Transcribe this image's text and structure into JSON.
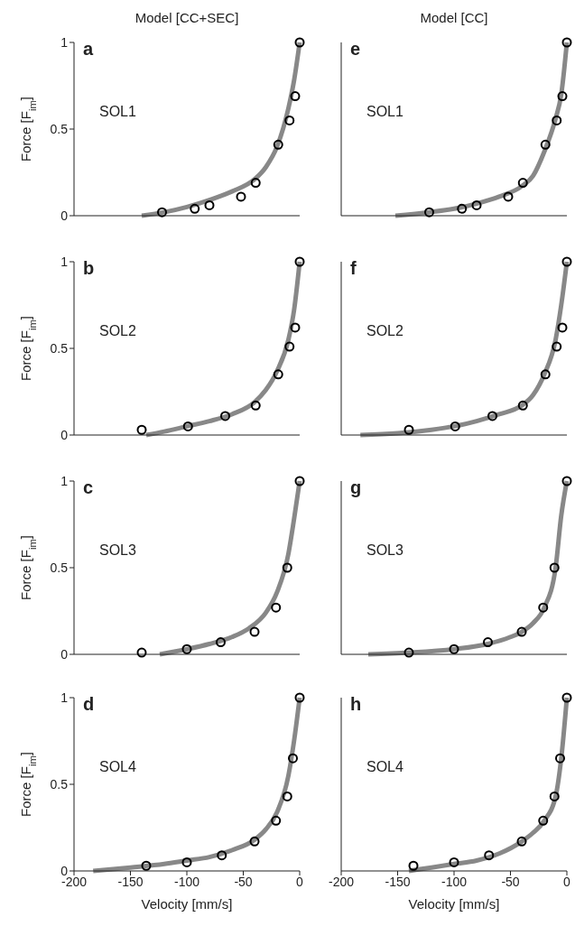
{
  "chart_data": [
    {
      "type": "line",
      "title": "Model [CC+SEC]",
      "ylabel": "Force [F$_{im}$]",
      "annotations": [
        "a",
        "SOL1"
      ],
      "xlim": [
        -200,
        0
      ],
      "xticks": [
        -200,
        -150,
        -100,
        -50,
        0
      ],
      "ylim": [
        0,
        1
      ],
      "yticks": [
        0,
        0.5,
        1
      ],
      "tick_labels": "y",
      "series": [
        {
          "color": "#888888",
          "x": [
            -140,
            -120,
            -100,
            -80,
            -60,
            -40,
            -30,
            -20,
            -10,
            -5,
            0
          ],
          "values": [
            0,
            0.02,
            0.05,
            0.09,
            0.14,
            0.21,
            0.28,
            0.4,
            0.62,
            0.78,
            1
          ]
        },
        {
          "type": "scatter",
          "marker": "circle",
          "color": "#000000",
          "x": [
            -122,
            -93,
            -80,
            -52,
            -39,
            -19,
            -9,
            -4,
            0
          ],
          "values": [
            0.02,
            0.04,
            0.06,
            0.11,
            0.19,
            0.41,
            0.55,
            0.69,
            1
          ]
        }
      ]
    },
    {
      "type": "line",
      "title": "Model [CC]",
      "annotations": [
        "e",
        "SOL1"
      ],
      "xlim": [
        -200,
        0
      ],
      "xticks": [
        -200,
        -150,
        -100,
        -50,
        0
      ],
      "ylim": [
        0,
        1
      ],
      "yticks": [
        0,
        0.5,
        1
      ],
      "tick_labels": false,
      "series": [
        {
          "color": "#888888",
          "x": [
            -152,
            -122,
            -100,
            -80,
            -60,
            -40,
            -30,
            -20,
            -10,
            -5,
            0
          ],
          "values": [
            0,
            0.02,
            0.04,
            0.07,
            0.11,
            0.17,
            0.23,
            0.37,
            0.56,
            0.7,
            1
          ]
        },
        {
          "type": "scatter",
          "marker": "circle",
          "color": "#000000",
          "x": [
            -122,
            -93,
            -80,
            -52,
            -39,
            -19,
            -9,
            -4,
            0
          ],
          "values": [
            0.02,
            0.04,
            0.06,
            0.11,
            0.19,
            0.41,
            0.55,
            0.69,
            1
          ]
        }
      ]
    },
    {
      "type": "line",
      "ylabel": "Force [F$_{im}$]",
      "annotations": [
        "b",
        "SOL2"
      ],
      "xlim": [
        -200,
        0
      ],
      "xticks": [
        -200,
        -150,
        -100,
        -50,
        0
      ],
      "ylim": [
        0,
        1
      ],
      "yticks": [
        0,
        0.5,
        1
      ],
      "tick_labels": "y",
      "series": [
        {
          "color": "#888888",
          "x": [
            -136,
            -120,
            -100,
            -80,
            -60,
            -40,
            -30,
            -20,
            -10,
            -5,
            0
          ],
          "values": [
            0,
            0.02,
            0.05,
            0.08,
            0.12,
            0.19,
            0.26,
            0.37,
            0.55,
            0.72,
            1
          ]
        },
        {
          "type": "scatter",
          "marker": "circle",
          "color": "#000000",
          "x": [
            -140,
            -99,
            -66,
            -39,
            -19,
            -9,
            -4,
            0
          ],
          "values": [
            0.03,
            0.05,
            0.11,
            0.17,
            0.35,
            0.51,
            0.62,
            1
          ]
        }
      ]
    },
    {
      "type": "line",
      "annotations": [
        "f",
        "SOL2"
      ],
      "xlim": [
        -200,
        0
      ],
      "xticks": [
        -200,
        -150,
        -100,
        -50,
        0
      ],
      "ylim": [
        0,
        1
      ],
      "yticks": [
        0,
        0.5,
        1
      ],
      "tick_labels": false,
      "series": [
        {
          "color": "#888888",
          "x": [
            -183,
            -150,
            -120,
            -100,
            -80,
            -60,
            -40,
            -30,
            -20,
            -10,
            -5,
            0
          ],
          "values": [
            0,
            0.01,
            0.03,
            0.05,
            0.08,
            0.12,
            0.17,
            0.23,
            0.35,
            0.55,
            0.75,
            1
          ]
        },
        {
          "type": "scatter",
          "marker": "circle",
          "color": "#000000",
          "x": [
            -140,
            -99,
            -66,
            -39,
            -19,
            -9,
            -4,
            0
          ],
          "values": [
            0.03,
            0.05,
            0.11,
            0.17,
            0.35,
            0.51,
            0.62,
            1
          ]
        }
      ]
    },
    {
      "type": "line",
      "ylabel": "Force [F$_{im}$]",
      "annotations": [
        "c",
        "SOL3"
      ],
      "xlim": [
        -200,
        0
      ],
      "xticks": [
        -200,
        -150,
        -100,
        -50,
        0
      ],
      "ylim": [
        0,
        1
      ],
      "yticks": [
        0,
        0.5,
        1
      ],
      "tick_labels": "y",
      "series": [
        {
          "color": "#888888",
          "x": [
            -124,
            -100,
            -80,
            -60,
            -45,
            -30,
            -20,
            -10,
            -5,
            0
          ],
          "values": [
            0,
            0.03,
            0.06,
            0.1,
            0.15,
            0.24,
            0.36,
            0.58,
            0.78,
            1
          ]
        },
        {
          "type": "scatter",
          "marker": "circle",
          "color": "#000000",
          "x": [
            -140,
            -100,
            -70,
            -40,
            -21,
            -11,
            0
          ],
          "values": [
            0.01,
            0.03,
            0.07,
            0.13,
            0.27,
            0.5,
            1
          ]
        }
      ]
    },
    {
      "type": "line",
      "annotations": [
        "g",
        "SOL3"
      ],
      "xlim": [
        -200,
        0
      ],
      "xticks": [
        -200,
        -150,
        -100,
        -50,
        0
      ],
      "ylim": [
        0,
        1
      ],
      "yticks": [
        0,
        0.5,
        1
      ],
      "tick_labels": false,
      "series": [
        {
          "color": "#888888",
          "x": [
            -176,
            -140,
            -100,
            -70,
            -50,
            -40,
            -30,
            -20,
            -10,
            -5,
            0
          ],
          "values": [
            0,
            0.01,
            0.03,
            0.06,
            0.1,
            0.13,
            0.18,
            0.27,
            0.5,
            0.8,
            1
          ]
        },
        {
          "type": "scatter",
          "marker": "circle",
          "color": "#000000",
          "x": [
            -140,
            -100,
            -70,
            -40,
            -21,
            -11,
            0
          ],
          "values": [
            0.01,
            0.03,
            0.07,
            0.13,
            0.27,
            0.5,
            1
          ]
        }
      ]
    },
    {
      "type": "line",
      "xlabel": "Velocity [mm/s]",
      "ylabel": "Force [F$_{im}$]",
      "annotations": [
        "d",
        "SOL4"
      ],
      "xlim": [
        -200,
        0
      ],
      "xticks": [
        -200,
        -150,
        -100,
        -50,
        0
      ],
      "ylim": [
        0,
        1
      ],
      "yticks": [
        0,
        0.5,
        1
      ],
      "series": [
        {
          "color": "#888888",
          "x": [
            -183,
            -150,
            -120,
            -100,
            -80,
            -60,
            -40,
            -30,
            -20,
            -10,
            -5,
            0
          ],
          "values": [
            0,
            0.02,
            0.04,
            0.06,
            0.08,
            0.12,
            0.18,
            0.24,
            0.34,
            0.55,
            0.75,
            1
          ]
        },
        {
          "type": "scatter",
          "marker": "circle",
          "color": "#000000",
          "x": [
            -136,
            -100,
            -69,
            -40,
            -21,
            -11,
            -6,
            0
          ],
          "values": [
            0.03,
            0.05,
            0.09,
            0.17,
            0.29,
            0.43,
            0.65,
            1
          ]
        }
      ]
    },
    {
      "type": "line",
      "xlabel": "Velocity [mm/s]",
      "annotations": [
        "h",
        "SOL4"
      ],
      "xlim": [
        -200,
        0
      ],
      "xticks": [
        -200,
        -150,
        -100,
        -50,
        0
      ],
      "ylim": [
        0,
        1
      ],
      "yticks": [
        0,
        0.5,
        1
      ],
      "tick_labels": "x",
      "series": [
        {
          "color": "#888888",
          "x": [
            -140,
            -120,
            -100,
            -80,
            -60,
            -40,
            -30,
            -20,
            -10,
            -5,
            0
          ],
          "values": [
            0,
            0.02,
            0.04,
            0.06,
            0.1,
            0.17,
            0.22,
            0.29,
            0.43,
            0.65,
            1
          ]
        },
        {
          "type": "scatter",
          "marker": "circle",
          "color": "#000000",
          "x": [
            -136,
            -100,
            -69,
            -40,
            -21,
            -11,
            -6,
            0
          ],
          "values": [
            0.03,
            0.05,
            0.09,
            0.17,
            0.29,
            0.43,
            0.65,
            1
          ]
        }
      ]
    }
  ]
}
